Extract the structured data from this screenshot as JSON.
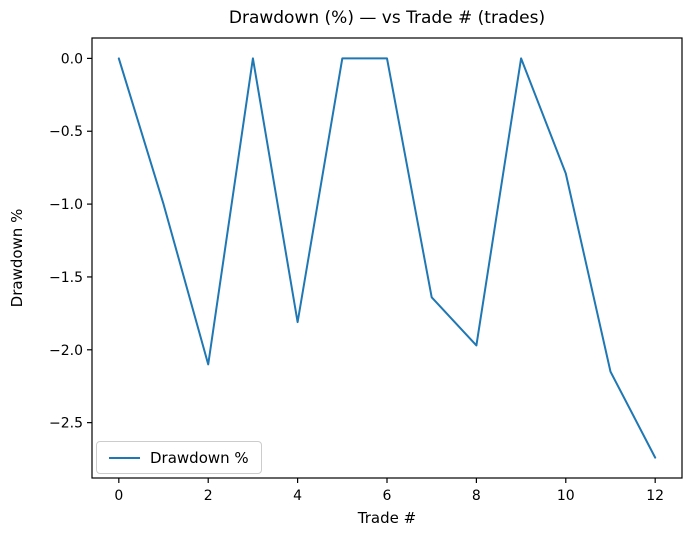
{
  "chart_data": {
    "type": "line",
    "title": "Drawdown (%) — vs Trade # (trades)",
    "xlabel": "Trade #",
    "ylabel": "Drawdown %",
    "x": [
      0,
      1,
      2,
      3,
      4,
      5,
      6,
      7,
      8,
      9,
      10,
      11,
      12
    ],
    "series": [
      {
        "name": "Drawdown %",
        "color": "#1f77b4",
        "values": [
          0.0,
          -1.0,
          -2.1,
          0.0,
          -1.81,
          0.0,
          0.0,
          -1.64,
          -1.97,
          0.0,
          -0.79,
          -2.15,
          -2.74
        ]
      }
    ],
    "xlim": [
      -0.6,
      12.6
    ],
    "ylim": [
      -2.88,
      0.14
    ],
    "xticks": [
      0,
      2,
      4,
      6,
      8,
      10,
      12
    ],
    "xticklabels": [
      "0",
      "2",
      "4",
      "6",
      "8",
      "10",
      "12"
    ],
    "yticks": [
      0.0,
      -0.5,
      -1.0,
      -1.5,
      -2.0,
      -2.5
    ],
    "yticklabels": [
      "0.0",
      "−0.5",
      "−1.0",
      "−1.5",
      "−2.0",
      "−2.5"
    ],
    "grid": false,
    "legend": {
      "position": "lower left",
      "entries": [
        "Drawdown %"
      ]
    }
  },
  "colors": {
    "line": "#1f77b4",
    "axis": "#000000",
    "background": "#ffffff",
    "legend_border": "#cccccc"
  }
}
